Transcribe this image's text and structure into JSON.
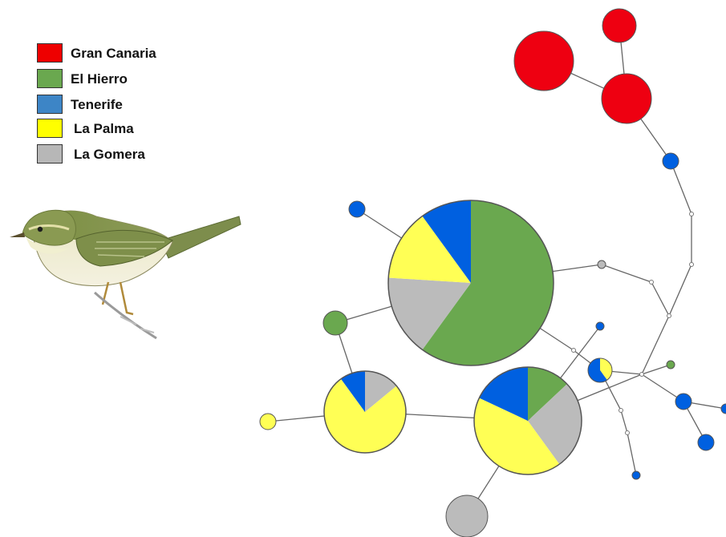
{
  "legend": {
    "items": [
      {
        "label": "Gran Canaria",
        "color": "#ee0000",
        "key": "gc"
      },
      {
        "label": "El Hierro",
        "color": "#6aa84f",
        "key": "eh"
      },
      {
        "label": "Tenerife",
        "color": "#3d85c6",
        "key": "tf"
      },
      {
        "label": "La Palma",
        "color": "#ffff00",
        "key": "lp"
      },
      {
        "label": "La Gomera",
        "color": "#b7b7b7",
        "key": "lg"
      }
    ]
  },
  "node_colors": {
    "gc": "#ee0011",
    "eh": "#6aa84f",
    "tf": "#0060e0",
    "lp": "#ffff55",
    "lg": "#bbbbbb",
    "median": "#ffffff"
  },
  "haplotype_nodes": [
    {
      "id": "gc_large",
      "composition": {
        "gc": 1
      }
    },
    {
      "id": "gc_top",
      "composition": {
        "gc": 1
      }
    },
    {
      "id": "gc_mid",
      "composition": {
        "gc": 1
      }
    },
    {
      "id": "tf_a",
      "composition": {
        "tf": 1
      }
    },
    {
      "id": "main",
      "composition": {
        "eh": 0.6,
        "lg": 0.16,
        "lp": 0.14,
        "tf": 0.1
      }
    },
    {
      "id": "tf_b",
      "composition": {
        "tf": 1
      }
    },
    {
      "id": "lg_small",
      "composition": {
        "lg": 1
      }
    },
    {
      "id": "eh_a",
      "composition": {
        "eh": 1
      }
    },
    {
      "id": "left_pie",
      "composition": {
        "lg": 0.14,
        "lp": 0.76,
        "tf": 0.1
      }
    },
    {
      "id": "lp_small",
      "composition": {
        "lp": 1
      }
    },
    {
      "id": "center_pie",
      "composition": {
        "eh": 0.13,
        "lg": 0.27,
        "lp": 0.42,
        "tf": 0.18
      }
    },
    {
      "id": "lg_bottom",
      "composition": {
        "lg": 1
      }
    },
    {
      "id": "tf_c",
      "composition": {
        "tf": 1
      }
    },
    {
      "id": "mix_small",
      "composition": {
        "lp": 0.4,
        "tf": 0.6
      }
    },
    {
      "id": "eh_b",
      "composition": {
        "eh": 1
      }
    },
    {
      "id": "tf_d",
      "composition": {
        "tf": 1
      }
    },
    {
      "id": "tf_e",
      "composition": {
        "tf": 1
      }
    },
    {
      "id": "tf_f",
      "composition": {
        "tf": 1
      }
    },
    {
      "id": "tf_g",
      "composition": {
        "tf": 1
      }
    }
  ],
  "bird": {
    "icon": "willow-warbler-illustration"
  }
}
